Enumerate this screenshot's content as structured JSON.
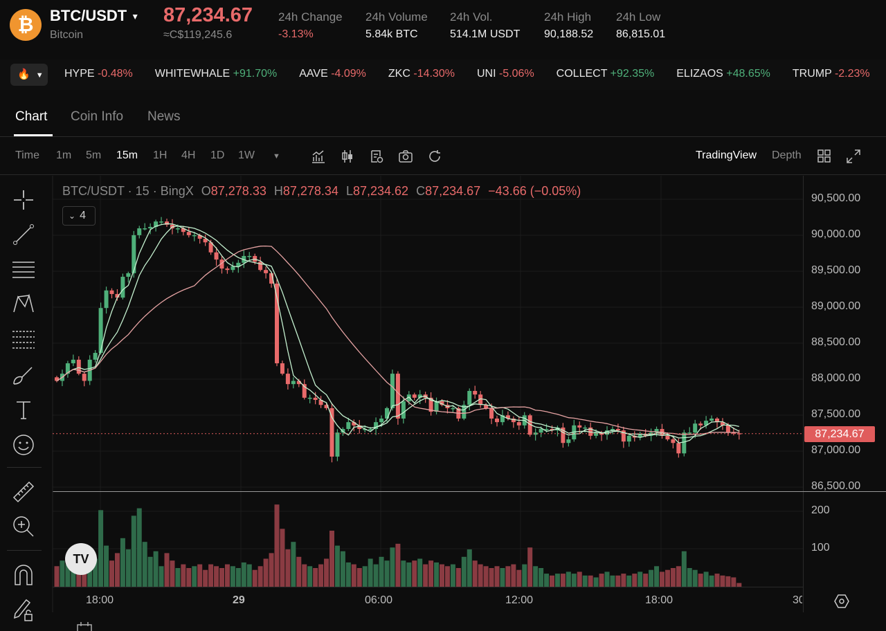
{
  "header": {
    "pair": "BTC/USDT",
    "name": "Bitcoin",
    "coin_symbol": "₿",
    "price": "87,234.67",
    "fiat": "≈C$119,245.6",
    "stats": [
      {
        "label": "24h Change",
        "value": "-3.13%",
        "color": "red"
      },
      {
        "label": "24h Volume",
        "value": "5.84k BTC"
      },
      {
        "label": "24h Vol.",
        "value": "514.1M USDT"
      },
      {
        "label": "24h High",
        "value": "90,188.52"
      },
      {
        "label": "24h Low",
        "value": "86,815.01"
      }
    ]
  },
  "ticker": [
    {
      "sym": "HYPE",
      "chg": "-0.48%",
      "up": false
    },
    {
      "sym": "WHITEWHALE",
      "chg": "+91.70%",
      "up": true
    },
    {
      "sym": "AAVE",
      "chg": "-4.09%",
      "up": false
    },
    {
      "sym": "ZKC",
      "chg": "-14.30%",
      "up": false
    },
    {
      "sym": "UNI",
      "chg": "-5.06%",
      "up": false
    },
    {
      "sym": "COLLECT",
      "chg": "+92.35%",
      "up": true
    },
    {
      "sym": "ELIZAOS",
      "chg": "+48.65%",
      "up": true
    },
    {
      "sym": "TRUMP",
      "chg": "-2.23%",
      "up": false
    }
  ],
  "tabs": [
    "Chart",
    "Coin Info",
    "News"
  ],
  "toolbar": {
    "time": "Time",
    "intervals": [
      "1m",
      "5m",
      "15m",
      "1H",
      "4H",
      "1D",
      "1W"
    ],
    "active": "15m",
    "tradingview": "TradingView",
    "depth": "Depth"
  },
  "legend": {
    "title": "BTC/USDT · 15 · BingX",
    "o": "87,278.33",
    "h": "87,278.34",
    "l": "87,234.62",
    "c": "87,234.67",
    "change": "−43.66 (−0.05%)",
    "indicator_count": "4"
  },
  "tv_logo": "TV",
  "chart_data": {
    "type": "candlestick",
    "ylim": [
      86500,
      90500
    ],
    "price_ticks": [
      "90,500.00",
      "90,000.00",
      "89,500.00",
      "89,000.00",
      "88,500.00",
      "88,000.00",
      "87,500.00",
      "87,000.00",
      "86,500.00"
    ],
    "volume_ticks": [
      "200",
      "100"
    ],
    "time_ticks": [
      "18:00",
      "29",
      "06:00",
      "12:00",
      "18:00",
      "30"
    ],
    "current_price": "87,234.67",
    "current_value": 87234.67,
    "colors": {
      "up": "#4fb07a",
      "down": "#e86a6a",
      "ma_fast": "#c4f0cf",
      "ma_slow": "#e6a3a3"
    },
    "closes": [
      87970,
      88070,
      88215,
      88265,
      88070,
      87970,
      88265,
      88360,
      88985,
      89230,
      89180,
      89130,
      89420,
      89470,
      90000,
      90095,
      90095,
      90115,
      90190,
      90190,
      90145,
      90095,
      90095,
      90045,
      90000,
      90000,
      89950,
      89900,
      89760,
      89660,
      89535,
      89515,
      89565,
      89615,
      89710,
      89710,
      89630,
      89515,
      89470,
      89325,
      88215,
      88070,
      87925,
      87970,
      87925,
      87735,
      87735,
      87705,
      87635,
      87590,
      86915,
      87250,
      87300,
      87395,
      87350,
      87300,
      87300,
      87300,
      87395,
      87445,
      87590,
      88070,
      87445,
      87685,
      87780,
      87735,
      87780,
      87735,
      87540,
      87685,
      87635,
      87590,
      87590,
      87445,
      87635,
      87830,
      87780,
      87635,
      87590,
      87445,
      87395,
      87490,
      87445,
      87395,
      87350,
      87490,
      87220,
      87250,
      87300,
      87300,
      87280,
      87320,
      87105,
      87155,
      87350,
      87320,
      87320,
      87205,
      87250,
      87220,
      87280,
      87300,
      87280,
      87125,
      87205,
      87180,
      87220,
      87205,
      87250,
      87300,
      87205,
      87155,
      87105,
      86960,
      87250,
      87250,
      87375,
      87350,
      87415,
      87445,
      87395,
      87350,
      87250,
      87240,
      87235
    ],
    "volumes": [
      55,
      70,
      60,
      80,
      50,
      60,
      55,
      75,
      205,
      110,
      70,
      90,
      130,
      100,
      190,
      210,
      120,
      80,
      95,
      55,
      90,
      70,
      50,
      60,
      50,
      55,
      60,
      45,
      60,
      55,
      50,
      60,
      55,
      50,
      65,
      60,
      45,
      55,
      75,
      90,
      220,
      155,
      100,
      120,
      80,
      60,
      55,
      50,
      60,
      75,
      150,
      110,
      95,
      65,
      60,
      50,
      55,
      75,
      60,
      80,
      70,
      105,
      115,
      70,
      65,
      70,
      75,
      60,
      70,
      65,
      60,
      55,
      60,
      50,
      80,
      100,
      70,
      60,
      55,
      50,
      55,
      50,
      55,
      60,
      45,
      60,
      105,
      55,
      50,
      35,
      30,
      35,
      35,
      40,
      35,
      40,
      30,
      30,
      25,
      35,
      40,
      30,
      30,
      35,
      30,
      35,
      40,
      35,
      45,
      55,
      40,
      45,
      50,
      55,
      95,
      50,
      45,
      35,
      40,
      30,
      35,
      30,
      28,
      25,
      10
    ]
  }
}
